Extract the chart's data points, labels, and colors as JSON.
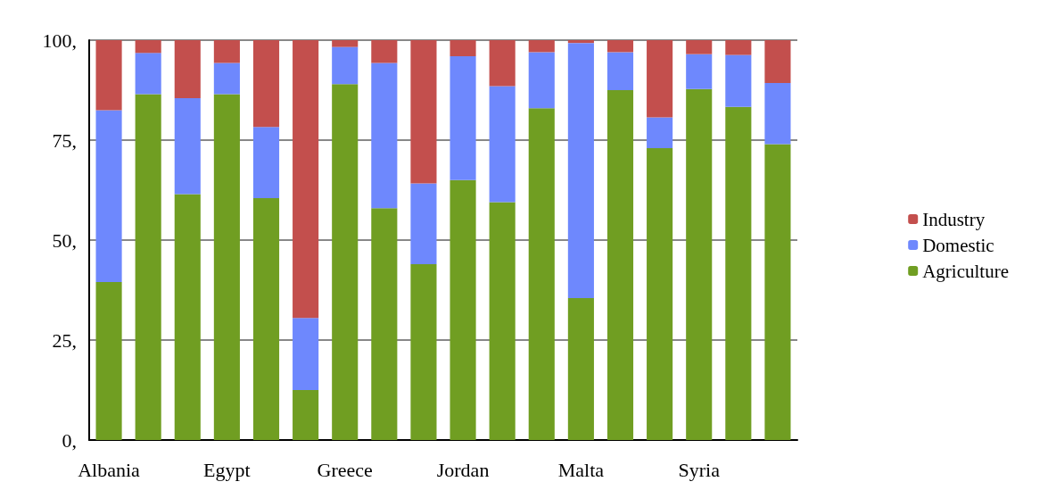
{
  "chart_data": {
    "type": "bar",
    "stacked": true,
    "categories": [
      "Albania",
      null,
      null,
      "Egypt",
      null,
      null,
      "Greece",
      null,
      null,
      "Jordan",
      null,
      null,
      "Malta",
      null,
      null,
      "Syria",
      null,
      null
    ],
    "series": [
      {
        "name": "Agriculture",
        "color": "#709e22",
        "values": [
          39.5,
          86.5,
          61.5,
          86.5,
          60.5,
          12.5,
          89,
          58,
          44,
          65,
          59.5,
          83,
          35.5,
          87.5,
          73,
          87.8,
          83.3,
          74
        ]
      },
      {
        "name": "Domestic",
        "color": "#6e88fd",
        "values": [
          43,
          10.3,
          24,
          7.8,
          17.8,
          18,
          9.3,
          36.3,
          20.2,
          31,
          29,
          14,
          63.8,
          9.5,
          7.7,
          8.7,
          13,
          15.3
        ]
      },
      {
        "name": "Industry",
        "color": "#c34f4d",
        "values": [
          17.5,
          3.2,
          14.5,
          5.7,
          21.7,
          69.5,
          1.7,
          5.7,
          35.8,
          4,
          11.5,
          3,
          0.7,
          3,
          19.3,
          3.5,
          3.7,
          10.7
        ]
      }
    ],
    "ylim": [
      0,
      100
    ],
    "yticks": [
      {
        "value": 0,
        "label": "0,"
      },
      {
        "value": 25,
        "label": "25,"
      },
      {
        "value": 50,
        "label": "50,"
      },
      {
        "value": 75,
        "label": "75,"
      },
      {
        "value": 100,
        "label": "100,"
      }
    ],
    "grid": "y",
    "legend": "right"
  }
}
